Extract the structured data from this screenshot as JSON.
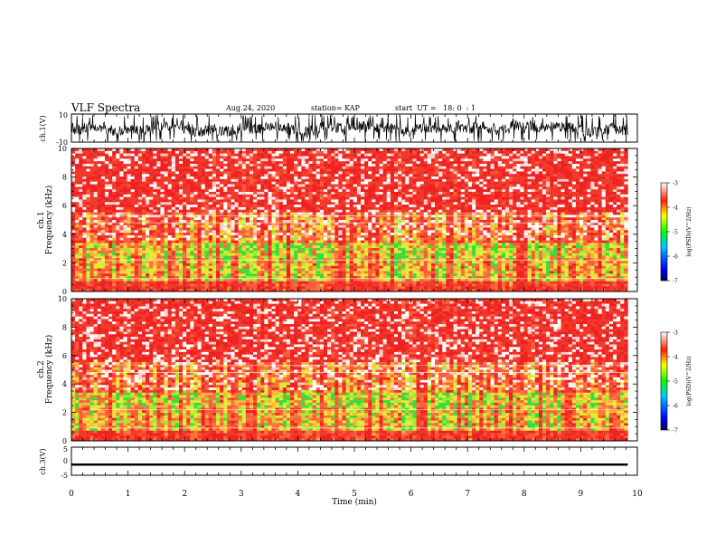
{
  "header": {
    "title": "VLF Spectra",
    "date": "Aug.24, 2020",
    "station": "station= KAP",
    "start_ut": "start  UT =   18: 0  : 1"
  },
  "chart_data": [
    {
      "type": "line",
      "ylabel": "ch.1(V)",
      "ylim": [
        -10,
        10
      ],
      "yticks": [
        "10",
        "-10"
      ],
      "xlim": [
        0,
        10
      ],
      "x_extent": [
        0,
        9.83
      ],
      "trace": "noisy waveform, mostly between about -6 V and +6 V with frequent spikes to the limits"
    },
    {
      "type": "heatmap",
      "ylabel": "ch.1 Frequency (kHz)",
      "ylim": [
        0,
        10
      ],
      "yticks": [
        "0",
        "2",
        "4",
        "6",
        "8",
        "10"
      ],
      "xlim": [
        0,
        10
      ],
      "x_extent": [
        0,
        9.83
      ],
      "colorbar": {
        "label": "log(PSD)(V^2/Hz)",
        "range": [
          -7,
          -3
        ],
        "ticks": [
          "-3",
          "-4",
          "-5",
          "-6",
          "-7"
        ]
      },
      "dominant_color": "#ee2a2a"
    },
    {
      "type": "heatmap",
      "ylabel": "ch.2 Frequency (kHz)",
      "ylim": [
        0,
        10
      ],
      "yticks": [
        "0",
        "2",
        "4",
        "6",
        "8",
        "10"
      ],
      "xlim": [
        0,
        10
      ],
      "x_extent": [
        0,
        9.83
      ],
      "colorbar": {
        "label": "log(PSD)(V^2/Hz)",
        "range": [
          -7,
          -3
        ],
        "ticks": [
          "-3",
          "-4",
          "-5",
          "-6",
          "-7"
        ]
      },
      "dominant_color": "#ee2a2a"
    },
    {
      "type": "line",
      "ylabel": "ch.3(V)",
      "ylim": [
        -5,
        5
      ],
      "yticks": [
        "5",
        "0",
        "-5"
      ],
      "xlim": [
        0,
        10
      ],
      "x_extent": [
        0,
        9.83
      ],
      "xlabel": "Time (min)",
      "xticks": [
        "0",
        "1",
        "2",
        "3",
        "4",
        "5",
        "6",
        "7",
        "8",
        "9",
        "10"
      ],
      "trace": "thick flat band centered near -1.2 V"
    }
  ]
}
